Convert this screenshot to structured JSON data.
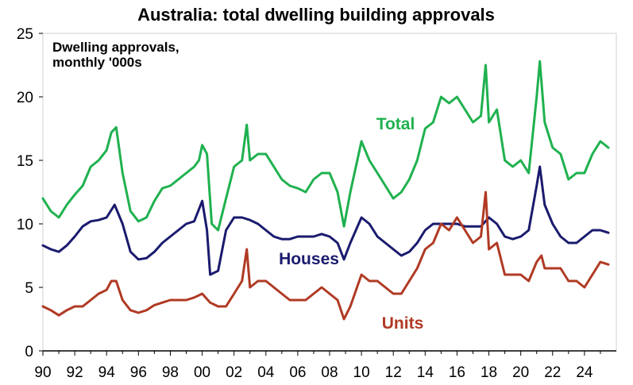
{
  "chart_data": {
    "type": "line",
    "title": "Australia: total dwelling building approvals",
    "annotation": [
      "Dwelling approvals,",
      "monthly '000s"
    ],
    "xlabel": "",
    "ylabel": "",
    "xlim": [
      1990,
      2026
    ],
    "ylim": [
      0,
      25
    ],
    "xticks": [
      "90",
      "92",
      "94",
      "96",
      "98",
      "00",
      "02",
      "04",
      "06",
      "08",
      "10",
      "12",
      "14",
      "16",
      "18",
      "20",
      "22",
      "24"
    ],
    "yticks": [
      "0",
      "5",
      "10",
      "15",
      "20",
      "25"
    ],
    "grid": false,
    "colors": {
      "total": "#1fb14f",
      "houses": "#1a1a6e",
      "units": "#b03a24"
    },
    "series": [
      {
        "name": "Total",
        "color": "#1fb14f",
        "points": [
          [
            1990,
            12.0
          ],
          [
            1990.5,
            11.0
          ],
          [
            1991,
            10.5
          ],
          [
            1991.5,
            11.5
          ],
          [
            1992,
            12.3
          ],
          [
            1992.5,
            13.0
          ],
          [
            1993,
            14.5
          ],
          [
            1993.5,
            15.0
          ],
          [
            1994,
            15.8
          ],
          [
            1994.3,
            17.2
          ],
          [
            1994.6,
            17.6
          ],
          [
            1995,
            14.0
          ],
          [
            1995.5,
            11.0
          ],
          [
            1996,
            10.2
          ],
          [
            1996.5,
            10.5
          ],
          [
            1997,
            11.8
          ],
          [
            1997.5,
            12.8
          ],
          [
            1998,
            13.0
          ],
          [
            1998.5,
            13.5
          ],
          [
            1999,
            14.0
          ],
          [
            1999.5,
            14.5
          ],
          [
            1999.8,
            15.0
          ],
          [
            2000,
            16.2
          ],
          [
            2000.3,
            15.5
          ],
          [
            2000.6,
            10.0
          ],
          [
            2001,
            9.5
          ],
          [
            2001.5,
            12.0
          ],
          [
            2002,
            14.5
          ],
          [
            2002.5,
            15.0
          ],
          [
            2002.8,
            17.8
          ],
          [
            2003,
            15.0
          ],
          [
            2003.5,
            15.5
          ],
          [
            2004,
            15.5
          ],
          [
            2004.5,
            14.5
          ],
          [
            2005,
            13.5
          ],
          [
            2005.5,
            13.0
          ],
          [
            2006,
            12.8
          ],
          [
            2006.5,
            12.5
          ],
          [
            2007,
            13.5
          ],
          [
            2007.5,
            14.0
          ],
          [
            2008,
            14.0
          ],
          [
            2008.5,
            12.5
          ],
          [
            2008.9,
            9.8
          ],
          [
            2009.3,
            12.5
          ],
          [
            2010,
            16.5
          ],
          [
            2010.5,
            15.0
          ],
          [
            2011,
            14.0
          ],
          [
            2011.5,
            13.0
          ],
          [
            2012,
            12.0
          ],
          [
            2012.5,
            12.5
          ],
          [
            2013,
            13.5
          ],
          [
            2013.5,
            15.0
          ],
          [
            2014,
            17.5
          ],
          [
            2014.5,
            18.0
          ],
          [
            2015,
            20.0
          ],
          [
            2015.5,
            19.5
          ],
          [
            2016,
            20.0
          ],
          [
            2016.5,
            19.0
          ],
          [
            2017,
            18.0
          ],
          [
            2017.5,
            18.5
          ],
          [
            2017.8,
            22.5
          ],
          [
            2018,
            18.0
          ],
          [
            2018.5,
            19.0
          ],
          [
            2019,
            15.0
          ],
          [
            2019.5,
            14.5
          ],
          [
            2020,
            15.0
          ],
          [
            2020.5,
            14.0
          ],
          [
            2021,
            20.0
          ],
          [
            2021.2,
            22.8
          ],
          [
            2021.5,
            18.0
          ],
          [
            2022,
            16.0
          ],
          [
            2022.5,
            15.5
          ],
          [
            2023,
            13.5
          ],
          [
            2023.5,
            14.0
          ],
          [
            2024,
            14.0
          ],
          [
            2024.5,
            15.5
          ],
          [
            2025,
            16.5
          ],
          [
            2025.5,
            16.0
          ]
        ]
      },
      {
        "name": "Houses",
        "color": "#1a1a6e",
        "points": [
          [
            1990,
            8.3
          ],
          [
            1990.5,
            8.0
          ],
          [
            1991,
            7.8
          ],
          [
            1991.5,
            8.3
          ],
          [
            1992,
            9.0
          ],
          [
            1992.5,
            9.8
          ],
          [
            1993,
            10.2
          ],
          [
            1993.5,
            10.3
          ],
          [
            1994,
            10.5
          ],
          [
            1994.5,
            11.5
          ],
          [
            1995,
            10.0
          ],
          [
            1995.5,
            7.8
          ],
          [
            1996,
            7.2
          ],
          [
            1996.5,
            7.3
          ],
          [
            1997,
            7.8
          ],
          [
            1997.5,
            8.5
          ],
          [
            1998,
            9.0
          ],
          [
            1998.5,
            9.5
          ],
          [
            1999,
            10.0
          ],
          [
            1999.5,
            10.2
          ],
          [
            2000,
            11.8
          ],
          [
            2000.3,
            9.5
          ],
          [
            2000.5,
            6.0
          ],
          [
            2001,
            6.3
          ],
          [
            2001.5,
            9.5
          ],
          [
            2002,
            10.5
          ],
          [
            2002.5,
            10.5
          ],
          [
            2003,
            10.3
          ],
          [
            2003.5,
            10.0
          ],
          [
            2004,
            9.5
          ],
          [
            2004.5,
            9.0
          ],
          [
            2005,
            8.8
          ],
          [
            2005.5,
            8.8
          ],
          [
            2006,
            9.0
          ],
          [
            2006.5,
            9.0
          ],
          [
            2007,
            9.0
          ],
          [
            2007.5,
            9.2
          ],
          [
            2008,
            9.0
          ],
          [
            2008.5,
            8.5
          ],
          [
            2008.9,
            7.2
          ],
          [
            2009.3,
            8.5
          ],
          [
            2010,
            10.5
          ],
          [
            2010.5,
            10.0
          ],
          [
            2011,
            9.0
          ],
          [
            2011.5,
            8.5
          ],
          [
            2012,
            8.0
          ],
          [
            2012.5,
            7.5
          ],
          [
            2013,
            7.8
          ],
          [
            2013.5,
            8.5
          ],
          [
            2014,
            9.5
          ],
          [
            2014.5,
            10.0
          ],
          [
            2015,
            10.0
          ],
          [
            2015.5,
            10.0
          ],
          [
            2016,
            10.0
          ],
          [
            2016.5,
            9.8
          ],
          [
            2017,
            9.8
          ],
          [
            2017.5,
            9.8
          ],
          [
            2018,
            10.5
          ],
          [
            2018.5,
            10.0
          ],
          [
            2019,
            9.0
          ],
          [
            2019.5,
            8.8
          ],
          [
            2020,
            9.0
          ],
          [
            2020.5,
            9.5
          ],
          [
            2021,
            13.0
          ],
          [
            2021.2,
            14.5
          ],
          [
            2021.5,
            11.5
          ],
          [
            2022,
            10.0
          ],
          [
            2022.5,
            9.0
          ],
          [
            2023,
            8.5
          ],
          [
            2023.5,
            8.5
          ],
          [
            2024,
            9.0
          ],
          [
            2024.5,
            9.5
          ],
          [
            2025,
            9.5
          ],
          [
            2025.5,
            9.3
          ]
        ]
      },
      {
        "name": "Units",
        "color": "#b03a24",
        "points": [
          [
            1990,
            3.5
          ],
          [
            1990.5,
            3.2
          ],
          [
            1991,
            2.8
          ],
          [
            1991.5,
            3.2
          ],
          [
            1992,
            3.5
          ],
          [
            1992.5,
            3.5
          ],
          [
            1993,
            4.0
          ],
          [
            1993.5,
            4.5
          ],
          [
            1994,
            4.8
          ],
          [
            1994.3,
            5.5
          ],
          [
            1994.6,
            5.5
          ],
          [
            1995,
            4.0
          ],
          [
            1995.5,
            3.2
          ],
          [
            1996,
            3.0
          ],
          [
            1996.5,
            3.2
          ],
          [
            1997,
            3.6
          ],
          [
            1997.5,
            3.8
          ],
          [
            1998,
            4.0
          ],
          [
            1998.5,
            4.0
          ],
          [
            1999,
            4.0
          ],
          [
            1999.5,
            4.2
          ],
          [
            2000,
            4.5
          ],
          [
            2000.5,
            3.8
          ],
          [
            2001,
            3.5
          ],
          [
            2001.5,
            3.5
          ],
          [
            2002,
            4.5
          ],
          [
            2002.5,
            5.5
          ],
          [
            2002.8,
            8.0
          ],
          [
            2003,
            5.0
          ],
          [
            2003.5,
            5.5
          ],
          [
            2004,
            5.5
          ],
          [
            2004.5,
            5.0
          ],
          [
            2005,
            4.5
          ],
          [
            2005.5,
            4.0
          ],
          [
            2006,
            4.0
          ],
          [
            2006.5,
            4.0
          ],
          [
            2007,
            4.5
          ],
          [
            2007.5,
            5.0
          ],
          [
            2008,
            4.5
          ],
          [
            2008.5,
            4.0
          ],
          [
            2008.9,
            2.5
          ],
          [
            2009.3,
            3.5
          ],
          [
            2010,
            6.0
          ],
          [
            2010.5,
            5.5
          ],
          [
            2011,
            5.5
          ],
          [
            2011.5,
            5.0
          ],
          [
            2012,
            4.5
          ],
          [
            2012.5,
            4.5
          ],
          [
            2013,
            5.5
          ],
          [
            2013.5,
            6.5
          ],
          [
            2014,
            8.0
          ],
          [
            2014.5,
            8.5
          ],
          [
            2015,
            10.0
          ],
          [
            2015.5,
            9.5
          ],
          [
            2016,
            10.5
          ],
          [
            2016.5,
            9.5
          ],
          [
            2017,
            8.5
          ],
          [
            2017.5,
            9.0
          ],
          [
            2017.8,
            12.5
          ],
          [
            2018,
            8.0
          ],
          [
            2018.5,
            8.5
          ],
          [
            2019,
            6.0
          ],
          [
            2019.5,
            6.0
          ],
          [
            2020,
            6.0
          ],
          [
            2020.5,
            5.5
          ],
          [
            2021,
            7.0
          ],
          [
            2021.3,
            7.5
          ],
          [
            2021.5,
            6.5
          ],
          [
            2022,
            6.5
          ],
          [
            2022.5,
            6.5
          ],
          [
            2023,
            5.5
          ],
          [
            2023.5,
            5.5
          ],
          [
            2024,
            5.0
          ],
          [
            2024.5,
            6.0
          ],
          [
            2025,
            7.0
          ],
          [
            2025.5,
            6.8
          ]
        ]
      }
    ],
    "labels": [
      {
        "text": "Total",
        "series": "Total"
      },
      {
        "text": "Houses",
        "series": "Houses"
      },
      {
        "text": "Units",
        "series": "Units"
      }
    ]
  }
}
